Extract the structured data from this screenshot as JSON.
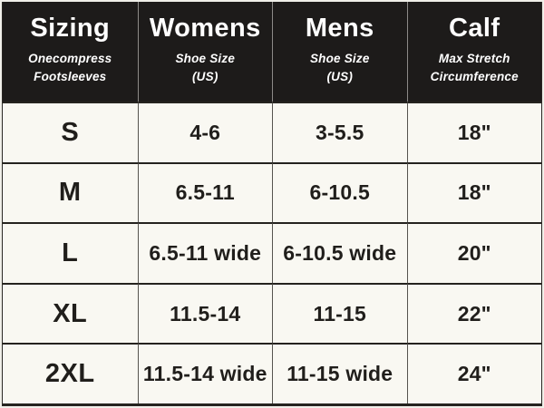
{
  "table": {
    "header": {
      "columns": [
        {
          "title": "Sizing",
          "subtitle_lines": [
            "Onecompress",
            "Footsleeves"
          ]
        },
        {
          "title": "Womens",
          "subtitle_lines": [
            "Shoe Size",
            "(US)"
          ]
        },
        {
          "title": "Mens",
          "subtitle_lines": [
            "Shoe Size",
            "(US)"
          ]
        },
        {
          "title": "Calf",
          "subtitle_lines": [
            "Max Stretch",
            "Circumference"
          ]
        }
      ]
    },
    "rows": [
      {
        "size": "S",
        "womens": "4-6",
        "mens": "3-5.5",
        "calf": "18\""
      },
      {
        "size": "M",
        "womens": "6.5-11",
        "mens": "6-10.5",
        "calf": "18\""
      },
      {
        "size": "L",
        "womens": "6.5-11 wide",
        "mens": "6-10.5 wide",
        "calf": "20\""
      },
      {
        "size": "XL",
        "womens": "11.5-14",
        "mens": "11-15",
        "calf": "22\""
      },
      {
        "size": "2XL",
        "womens": "11.5-14 wide",
        "mens": "11-15 wide",
        "calf": "24\""
      }
    ]
  },
  "colors": {
    "header_background": "#1d1b1a",
    "header_text": "#ffffff",
    "body_background": "#f9f8f2",
    "body_text": "#201e1b",
    "row_divider": "#25231f",
    "header_column_divider": "#8d8b88",
    "body_column_divider": "#56544f"
  }
}
